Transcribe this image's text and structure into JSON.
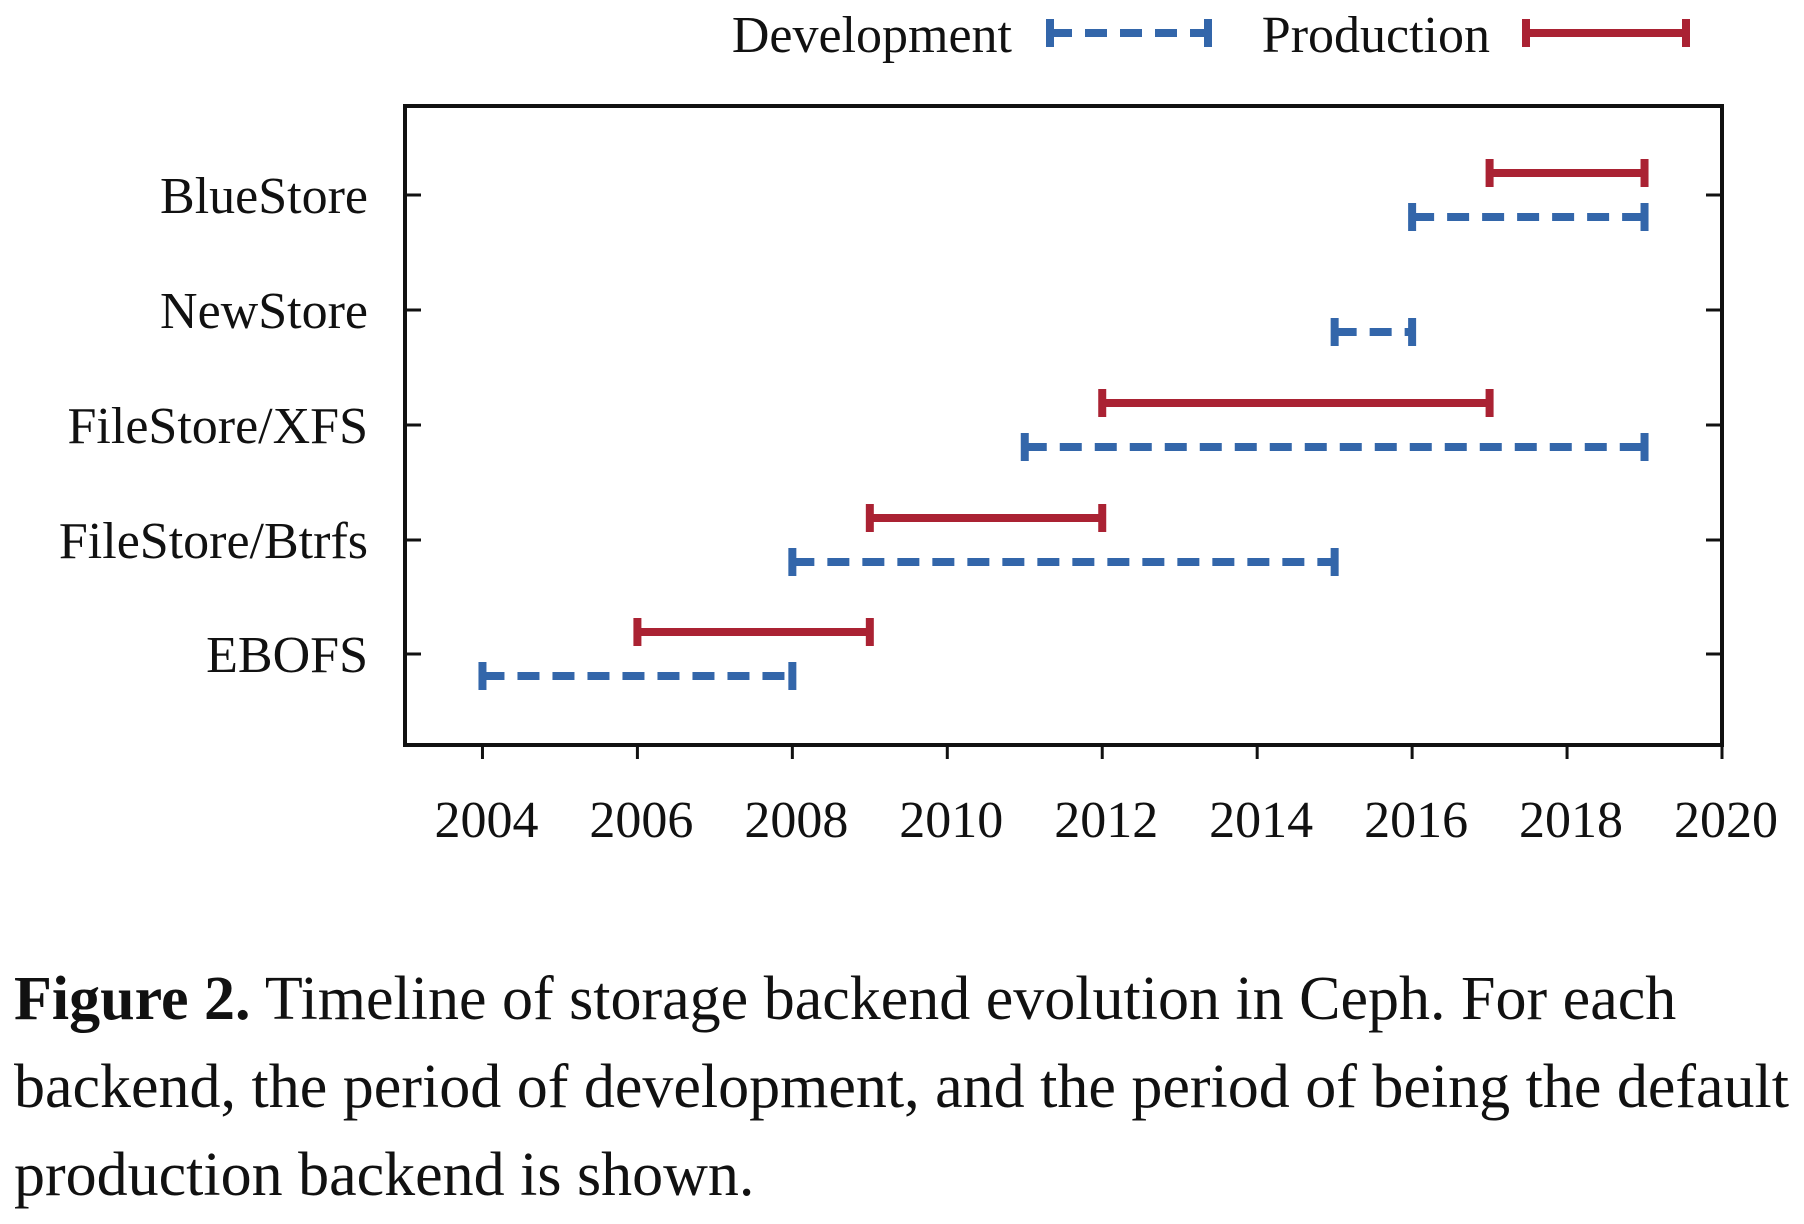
{
  "chart_data": {
    "type": "timeline",
    "x_range": [
      2003,
      2020
    ],
    "x_ticks": [
      2004,
      2006,
      2008,
      2010,
      2012,
      2014,
      2016,
      2018,
      2020
    ],
    "categories": [
      "EBOFS",
      "FileStore/Btrfs",
      "FileStore/XFS",
      "NewStore",
      "BlueStore"
    ],
    "series": [
      {
        "name": "Development",
        "color": "#3366aa",
        "style": "dashed",
        "intervals": [
          {
            "category": "EBOFS",
            "start": 2004,
            "end": 2008
          },
          {
            "category": "FileStore/Btrfs",
            "start": 2008,
            "end": 2015
          },
          {
            "category": "FileStore/XFS",
            "start": 2011,
            "end": 2019
          },
          {
            "category": "NewStore",
            "start": 2015,
            "end": 2016
          },
          {
            "category": "BlueStore",
            "start": 2016,
            "end": 2019
          }
        ]
      },
      {
        "name": "Production",
        "color": "#aa2233",
        "style": "solid",
        "intervals": [
          {
            "category": "EBOFS",
            "start": 2006,
            "end": 2009
          },
          {
            "category": "FileStore/Btrfs",
            "start": 2009,
            "end": 2012
          },
          {
            "category": "FileStore/XFS",
            "start": 2012,
            "end": 2017
          },
          {
            "category": "BlueStore",
            "start": 2017,
            "end": 2019
          }
        ]
      }
    ],
    "legend_position": "top-right",
    "grid": false
  },
  "caption": {
    "label": "Figure 2.",
    "text": " Timeline of storage backend evolution in Ceph. For each backend, the period of development, and the period of being the default production backend is shown."
  }
}
